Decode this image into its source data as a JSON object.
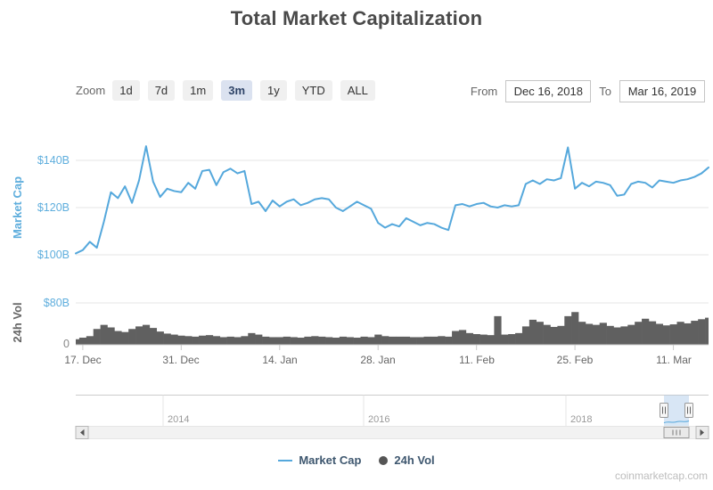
{
  "title": "Total Market Capitalization",
  "toolbar": {
    "zoom_label": "Zoom",
    "zoom_buttons": [
      {
        "label": "1d",
        "selected": false
      },
      {
        "label": "7d",
        "selected": false
      },
      {
        "label": "1m",
        "selected": false
      },
      {
        "label": "3m",
        "selected": true
      },
      {
        "label": "1y",
        "selected": false
      },
      {
        "label": "YTD",
        "selected": false
      },
      {
        "label": "ALL",
        "selected": false
      }
    ],
    "from_label": "From",
    "from_value": "Dec 16, 2018",
    "to_label": "To",
    "to_value": "Mar 16, 2019"
  },
  "legend": {
    "market_cap": "Market Cap",
    "vol": "24h Vol"
  },
  "watermark": "coinmarketcap.com",
  "colors": {
    "line": "#55A8DC",
    "volume_fill": "#606060",
    "axis_label_blue": "#5FAEDD",
    "selected_button_bg": "#dbe2f0",
    "selected_button_text": "#2f4468",
    "legend_text": "#3E576F",
    "navigator_mask": "#a8c8e8"
  },
  "navigator": {
    "years": [
      "2014",
      "2016",
      "2018"
    ],
    "selected_from": "Dec 16, 2018",
    "selected_to": "Mar 16, 2019"
  },
  "chart_data": [
    {
      "type": "line",
      "name": "Market Cap",
      "ylabel": "Market Cap",
      "unit": "$B",
      "yticks": [
        "$100B",
        "$120B",
        "$140B"
      ],
      "ylim": [
        92,
        152
      ],
      "grid": true,
      "x_start": "Dec 16, 2018",
      "x_end": "Mar 16, 2019",
      "frequency": "daily",
      "xticklabels": [
        "17. Dec",
        "31. Dec",
        "14. Jan",
        "28. Jan",
        "11. Feb",
        "25. Feb",
        "11. Mar"
      ],
      "values": [
        100.6,
        102.0,
        105.5,
        103.0,
        114.0,
        126.5,
        124.0,
        129.0,
        122.0,
        131.5,
        146.0,
        131.0,
        124.5,
        128.0,
        127.0,
        126.5,
        130.5,
        128.0,
        135.5,
        136.0,
        129.5,
        135.0,
        136.5,
        134.5,
        135.5,
        121.5,
        122.5,
        118.5,
        123.0,
        120.5,
        122.5,
        123.5,
        121.0,
        122.0,
        123.5,
        124.0,
        123.5,
        120.0,
        118.5,
        120.5,
        122.5,
        121.0,
        119.5,
        113.5,
        111.5,
        113.0,
        112.0,
        115.5,
        114.0,
        112.5,
        113.5,
        113.0,
        111.5,
        110.5,
        121.0,
        121.5,
        120.5,
        121.5,
        122.0,
        120.5,
        120.0,
        121.0,
        120.5,
        121.0,
        130.0,
        131.5,
        130.0,
        132.0,
        131.5,
        132.5,
        145.5,
        128.0,
        130.5,
        129.0,
        131.0,
        130.5,
        129.5,
        125.0,
        125.5,
        130.0,
        131.0,
        130.5,
        128.5,
        131.5,
        131.0,
        130.5,
        131.5,
        132.0,
        133.0,
        134.5,
        137.0
      ]
    },
    {
      "type": "bar",
      "name": "24h Vol",
      "ylabel": "24h Vol",
      "unit": "$B",
      "yticks": [
        "0",
        "$80B"
      ],
      "ylim": [
        0,
        95
      ],
      "grid": true,
      "x_start": "Dec 16, 2018",
      "x_end": "Mar 16, 2019",
      "frequency": "daily",
      "values": [
        10,
        13,
        16,
        30,
        38,
        33,
        26,
        24,
        30,
        35,
        38,
        32,
        25,
        21,
        19,
        17,
        16,
        15,
        17,
        18,
        16,
        14,
        15,
        14,
        16,
        22,
        19,
        15,
        14,
        14,
        15,
        14,
        13,
        15,
        16,
        15,
        14,
        13,
        15,
        14,
        13,
        15,
        14,
        19,
        16,
        15,
        15,
        15,
        14,
        14,
        15,
        15,
        16,
        15,
        26,
        28,
        22,
        20,
        19,
        18,
        55,
        19,
        20,
        22,
        35,
        48,
        44,
        38,
        34,
        36,
        55,
        63,
        44,
        40,
        38,
        42,
        36,
        33,
        35,
        38,
        44,
        50,
        45,
        40,
        37,
        39,
        44,
        41,
        46,
        49,
        52
      ]
    }
  ]
}
